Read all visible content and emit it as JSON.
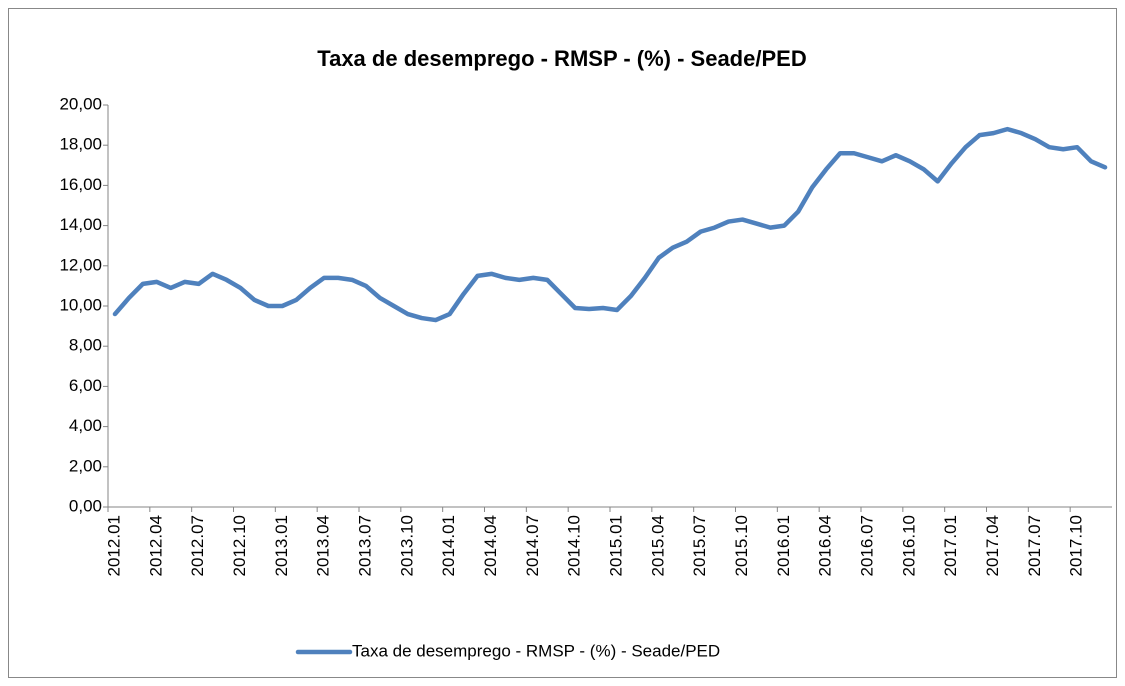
{
  "chart_data": {
    "type": "line",
    "title": "Taxa de desemprego - RMSP - (%) - Seade/PED",
    "categories": [
      "2012.01",
      null,
      null,
      "2012.04",
      null,
      null,
      "2012.07",
      null,
      null,
      "2012.10",
      null,
      null,
      "2013.01",
      null,
      null,
      "2013.04",
      null,
      null,
      "2013.07",
      null,
      null,
      "2013.10",
      null,
      null,
      "2014.01",
      null,
      null,
      "2014.04",
      null,
      null,
      "2014.07",
      null,
      null,
      "2014.10",
      null,
      null,
      "2015.01",
      null,
      null,
      "2015.04",
      null,
      null,
      "2015.07",
      null,
      null,
      "2015.10",
      null,
      null,
      "2016.01",
      null,
      null,
      "2016.04",
      null,
      null,
      "2016.07",
      null,
      null,
      "2016.10",
      null,
      null,
      "2017.01",
      null,
      null,
      "2017.04",
      null,
      null,
      "2017.07",
      null,
      null,
      "2017.10",
      null,
      null
    ],
    "series": [
      {
        "name": "Taxa de desemprego - RMSP - (%) - Seade/PED",
        "color": "#4f81bd",
        "values": [
          9.6,
          10.4,
          11.1,
          11.2,
          10.9,
          11.2,
          11.1,
          11.6,
          11.3,
          10.9,
          10.3,
          10.0,
          10.0,
          10.3,
          10.9,
          11.4,
          11.4,
          11.3,
          11.0,
          10.4,
          10.0,
          9.6,
          9.4,
          9.3,
          9.6,
          10.6,
          11.5,
          11.6,
          11.4,
          11.3,
          11.4,
          11.3,
          10.6,
          9.9,
          9.85,
          9.9,
          9.8,
          10.5,
          11.4,
          12.4,
          12.9,
          13.2,
          13.7,
          13.9,
          14.2,
          14.3,
          14.1,
          13.9,
          14.0,
          14.7,
          15.9,
          16.8,
          17.6,
          17.6,
          17.4,
          17.2,
          17.5,
          17.2,
          16.8,
          16.2,
          17.1,
          17.9,
          18.5,
          18.6,
          18.8,
          18.6,
          18.3,
          17.9,
          17.8,
          17.9,
          17.2,
          16.9
        ]
      }
    ],
    "ylim": [
      0,
      20
    ],
    "yticks": [
      {
        "value": 0,
        "label": "0,00"
      },
      {
        "value": 2,
        "label": "2,00"
      },
      {
        "value": 4,
        "label": "4,00"
      },
      {
        "value": 6,
        "label": "6,00"
      },
      {
        "value": 8,
        "label": "8,00"
      },
      {
        "value": 10,
        "label": "10,00"
      },
      {
        "value": 12,
        "label": "12,00"
      },
      {
        "value": 14,
        "label": "14,00"
      },
      {
        "value": 16,
        "label": "16,00"
      },
      {
        "value": 18,
        "label": "18,00"
      },
      {
        "value": 20,
        "label": "20,00"
      }
    ],
    "grid": false,
    "legend": "bottom"
  }
}
